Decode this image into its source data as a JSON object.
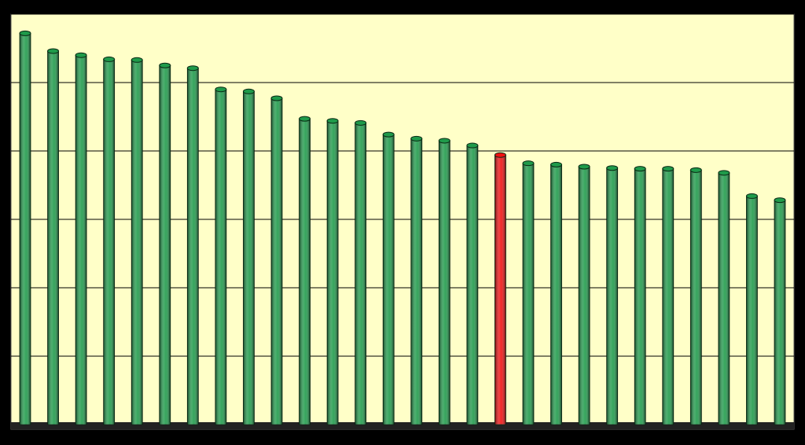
{
  "chart_data": {
    "type": "bar",
    "values": [
      5.72,
      5.46,
      5.4,
      5.34,
      5.33,
      5.25,
      5.21,
      4.9,
      4.87,
      4.77,
      4.47,
      4.44,
      4.41,
      4.24,
      4.18,
      4.15,
      4.08,
      3.94,
      3.82,
      3.8,
      3.77,
      3.75,
      3.74,
      3.74,
      3.72,
      3.68,
      3.34,
      3.28
    ],
    "colors": [
      "#1f9a4a",
      "#1f9a4a",
      "#1f9a4a",
      "#1f9a4a",
      "#1f9a4a",
      "#1f9a4a",
      "#1f9a4a",
      "#1f9a4a",
      "#1f9a4a",
      "#1f9a4a",
      "#1f9a4a",
      "#1f9a4a",
      "#1f9a4a",
      "#1f9a4a",
      "#1f9a4a",
      "#1f9a4a",
      "#1f9a4a",
      "#ee1111",
      "#1f9a4a",
      "#1f9a4a",
      "#1f9a4a",
      "#1f9a4a",
      "#1f9a4a",
      "#1f9a4a",
      "#1f9a4a",
      "#1f9a4a",
      "#1f9a4a",
      "#1f9a4a"
    ],
    "ylim": [
      0,
      6
    ],
    "yticks": [
      0,
      1,
      2,
      3,
      4,
      5,
      6
    ],
    "grid": true,
    "background": "#ffffc8"
  }
}
